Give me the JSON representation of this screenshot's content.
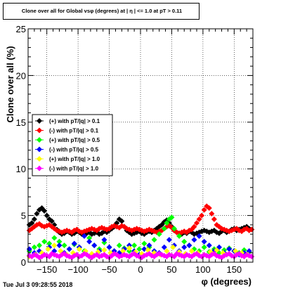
{
  "chart_data": {
    "type": "scatter",
    "title": "Clone  over all for Global vsφ (degrees) at | η | <= 1.0 at pT > 0.11",
    "xlabel": "φ (degrees)",
    "ylabel": "Clone  over all (%)",
    "xlim": [
      -180,
      180
    ],
    "ylim": [
      0,
      25
    ],
    "xticks": [
      -150,
      -100,
      -50,
      0,
      50,
      100,
      150
    ],
    "yticks": [
      0,
      5,
      10,
      15,
      20,
      25
    ],
    "grid": true,
    "legend_position": "left",
    "series": [
      {
        "name": "(+) with pT/|q| > 0.1",
        "color": "#000000",
        "x": [
          -178,
          -174,
          -170,
          -166,
          -162,
          -158,
          -154,
          -150,
          -146,
          -142,
          -138,
          -134,
          -130,
          -126,
          -122,
          -118,
          -114,
          -110,
          -106,
          -102,
          -98,
          -94,
          -90,
          -86,
          -82,
          -78,
          -74,
          -70,
          -66,
          -62,
          -58,
          -54,
          -50,
          -46,
          -42,
          -38,
          -34,
          -30,
          -26,
          -22,
          -18,
          -14,
          -10,
          -6,
          -2,
          2,
          6,
          10,
          14,
          18,
          22,
          26,
          30,
          34,
          38,
          42,
          46,
          50,
          54,
          58,
          62,
          66,
          70,
          74,
          78,
          82,
          86,
          90,
          94,
          98,
          102,
          106,
          110,
          114,
          118,
          122,
          126,
          130,
          134,
          138,
          142,
          146,
          150,
          154,
          158,
          162,
          166,
          170,
          174,
          178
        ],
        "y": [
          4.0,
          4.2,
          4.6,
          5.2,
          5.6,
          5.8,
          5.5,
          5.0,
          4.6,
          4.4,
          4.0,
          3.5,
          3.2,
          3.0,
          3.1,
          3.3,
          3.2,
          3.0,
          3.1,
          3.3,
          3.2,
          3.0,
          2.9,
          3.1,
          3.2,
          3.0,
          3.1,
          3.2,
          3.0,
          3.1,
          3.3,
          3.2,
          3.4,
          3.6,
          3.8,
          4.2,
          4.6,
          4.4,
          3.8,
          3.4,
          3.2,
          3.0,
          3.1,
          3.2,
          3.3,
          3.1,
          3.0,
          3.2,
          3.3,
          3.2,
          3.4,
          3.6,
          3.8,
          4.0,
          4.3,
          4.5,
          4.2,
          3.8,
          3.4,
          3.2,
          3.1,
          3.0,
          3.2,
          3.1,
          3.3,
          3.2,
          3.0,
          3.1,
          3.2,
          3.3,
          3.4,
          3.3,
          3.2,
          3.3,
          3.4,
          3.2,
          3.1,
          3.3,
          3.4,
          3.2,
          3.3,
          3.5,
          3.6,
          3.4,
          3.5,
          3.6,
          3.7,
          3.8,
          3.6,
          3.5
        ]
      },
      {
        "name": "(-) with pT/|q| > 0.1",
        "color": "#ff0000",
        "x": [
          -178,
          -174,
          -170,
          -166,
          -162,
          -158,
          -154,
          -150,
          -146,
          -142,
          -138,
          -134,
          -130,
          -126,
          -122,
          -118,
          -114,
          -110,
          -106,
          -102,
          -98,
          -94,
          -90,
          -86,
          -82,
          -78,
          -74,
          -70,
          -66,
          -62,
          -58,
          -54,
          -50,
          -46,
          -42,
          -38,
          -34,
          -30,
          -26,
          -22,
          -18,
          -14,
          -10,
          -6,
          -2,
          2,
          6,
          10,
          14,
          18,
          22,
          26,
          30,
          34,
          38,
          42,
          46,
          50,
          54,
          58,
          62,
          66,
          70,
          74,
          78,
          82,
          86,
          90,
          94,
          98,
          102,
          106,
          110,
          114,
          118,
          122,
          126,
          130,
          134,
          138,
          142,
          146,
          150,
          154,
          158,
          162,
          166,
          170,
          174,
          178
        ],
        "y": [
          3.4,
          3.6,
          3.8,
          4.0,
          4.1,
          3.9,
          3.8,
          3.9,
          4.0,
          3.8,
          3.6,
          3.4,
          3.3,
          3.2,
          3.3,
          3.4,
          3.3,
          3.2,
          3.4,
          3.5,
          3.3,
          3.2,
          3.3,
          3.4,
          3.5,
          3.6,
          3.5,
          3.4,
          3.6,
          3.7,
          3.6,
          3.5,
          3.6,
          3.8,
          3.9,
          3.8,
          3.7,
          3.9,
          3.8,
          3.6,
          3.5,
          3.4,
          3.5,
          3.6,
          3.5,
          3.4,
          3.3,
          3.4,
          3.5,
          3.4,
          3.3,
          3.2,
          3.3,
          3.4,
          3.6,
          3.8,
          3.9,
          3.7,
          3.4,
          3.2,
          3.1,
          3.2,
          3.3,
          3.2,
          3.4,
          3.5,
          3.8,
          4.2,
          4.6,
          5.0,
          5.6,
          6.0,
          5.8,
          5.2,
          4.6,
          4.0,
          3.8,
          3.6,
          3.5,
          3.4,
          3.3,
          3.4,
          3.5,
          3.6,
          3.4,
          3.3,
          3.5,
          3.6,
          3.4,
          3.5
        ]
      },
      {
        "name": "(+) with pT/|q| > 0.5",
        "color": "#00ff00",
        "x": [
          -178,
          -170,
          -162,
          -154,
          -146,
          -138,
          -130,
          -122,
          -114,
          -106,
          -98,
          -90,
          -82,
          -74,
          -66,
          -58,
          -50,
          -42,
          -34,
          -26,
          -18,
          -10,
          -2,
          6,
          14,
          22,
          30,
          38,
          42,
          46,
          50,
          54,
          62,
          70,
          78,
          86,
          94,
          102,
          110,
          118,
          126,
          134,
          142,
          150,
          158,
          166,
          174
        ],
        "y": [
          1.2,
          1.6,
          1.8,
          2.2,
          2.0,
          2.6,
          2.2,
          1.8,
          1.4,
          1.9,
          1.6,
          1.2,
          2.6,
          1.8,
          1.4,
          2.1,
          1.6,
          1.2,
          1.8,
          1.5,
          1.2,
          1.8,
          1.4,
          2.0,
          1.6,
          2.4,
          3.0,
          3.6,
          4.2,
          4.6,
          4.8,
          3.6,
          2.8,
          2.2,
          1.8,
          1.4,
          1.2,
          1.6,
          1.1,
          1.4,
          1.0,
          1.3,
          1.5,
          1.2,
          1.0,
          1.3,
          1.1
        ]
      },
      {
        "name": "(-) with pT/|q| > 0.5",
        "color": "#0000ff",
        "x": [
          -178,
          -170,
          -162,
          -154,
          -146,
          -138,
          -130,
          -122,
          -114,
          -106,
          -98,
          -90,
          -82,
          -74,
          -66,
          -58,
          -50,
          -42,
          -34,
          -26,
          -18,
          -10,
          -2,
          6,
          14,
          22,
          30,
          38,
          46,
          54,
          62,
          70,
          78,
          86,
          94,
          102,
          110,
          118,
          126,
          134,
          142,
          150,
          158,
          166,
          174
        ],
        "y": [
          1.4,
          1.0,
          1.2,
          0.8,
          1.6,
          1.2,
          1.8,
          1.0,
          1.4,
          2.0,
          1.6,
          2.8,
          2.2,
          1.8,
          1.2,
          2.4,
          1.6,
          1.2,
          1.0,
          1.4,
          1.8,
          1.2,
          0.8,
          1.4,
          1.8,
          1.2,
          1.0,
          1.6,
          2.4,
          1.8,
          1.2,
          1.6,
          1.8,
          2.4,
          2.8,
          2.2,
          1.8,
          1.2,
          1.6,
          1.0,
          1.4,
          1.2,
          0.8,
          1.0,
          1.2
        ]
      },
      {
        "name": "(+) with pT/|q| > 1.0",
        "color": "#ffff00",
        "x": [
          -178,
          -168,
          -158,
          -148,
          -138,
          -128,
          -118,
          -108,
          -98,
          -88,
          -78,
          -68,
          -58,
          -48,
          -38,
          -28,
          -18,
          -8,
          2,
          12,
          22,
          32,
          42,
          52,
          62,
          72,
          82,
          92,
          102,
          112,
          122,
          132,
          142,
          152,
          162,
          172
        ],
        "y": [
          0.6,
          0.8,
          1.0,
          1.4,
          1.8,
          1.2,
          0.8,
          1.0,
          1.4,
          1.2,
          0.9,
          1.1,
          1.3,
          1.0,
          0.8,
          1.2,
          1.5,
          1.1,
          0.9,
          1.3,
          1.0,
          0.8,
          1.2,
          1.6,
          1.1,
          0.9,
          1.2,
          1.0,
          0.8,
          1.1,
          1.3,
          1.0,
          0.9,
          1.2,
          1.0,
          0.8
        ]
      },
      {
        "name": "(-) with pT/|q| > 1.0",
        "color": "#ff00ff",
        "x": [
          -178,
          -174,
          -170,
          -166,
          -162,
          -158,
          -154,
          -150,
          -146,
          -142,
          -138,
          -134,
          -130,
          -126,
          -122,
          -118,
          -114,
          -110,
          -106,
          -102,
          -98,
          -94,
          -90,
          -86,
          -82,
          -78,
          -74,
          -70,
          -66,
          -62,
          -58,
          -54,
          -50,
          -46,
          -42,
          -38,
          -34,
          -30,
          -26,
          -22,
          -18,
          -14,
          -10,
          -6,
          -2,
          2,
          6,
          10,
          14,
          18,
          22,
          26,
          30,
          34,
          38,
          42,
          46,
          50,
          54,
          58,
          62,
          66,
          70,
          74,
          78,
          82,
          86,
          90,
          94,
          98,
          102,
          106,
          110,
          114,
          118,
          122,
          126,
          130,
          134,
          138,
          142,
          146,
          150,
          154,
          158,
          162,
          166,
          170,
          174,
          178
        ],
        "y": [
          0.7,
          0.6,
          0.8,
          0.7,
          0.5,
          0.6,
          0.8,
          0.7,
          0.6,
          0.9,
          0.8,
          0.7,
          0.6,
          0.8,
          0.9,
          0.7,
          0.6,
          0.5,
          0.7,
          0.8,
          0.6,
          0.7,
          0.9,
          0.8,
          0.6,
          0.5,
          0.7,
          0.8,
          0.6,
          0.7,
          0.8,
          0.6,
          0.5,
          0.7,
          0.9,
          0.8,
          0.6,
          0.7,
          0.8,
          0.7,
          0.6,
          0.8,
          0.9,
          0.7,
          0.6,
          0.5,
          0.7,
          0.8,
          0.9,
          0.7,
          0.6,
          0.8,
          0.9,
          0.8,
          0.7,
          0.6,
          0.8,
          0.7,
          0.6,
          0.9,
          0.8,
          0.7,
          0.6,
          0.8,
          0.7,
          0.6,
          0.8,
          0.9,
          0.7,
          0.6,
          0.8,
          0.7,
          0.6,
          0.8,
          0.9,
          0.7,
          0.6,
          0.5,
          0.7,
          0.8,
          0.9,
          0.7,
          0.6,
          0.8,
          0.9,
          0.7,
          0.6,
          0.8,
          0.7,
          0.6
        ]
      }
    ]
  },
  "footer": {
    "timestamp": "Tue Jul  3 09:28:55 2018"
  }
}
